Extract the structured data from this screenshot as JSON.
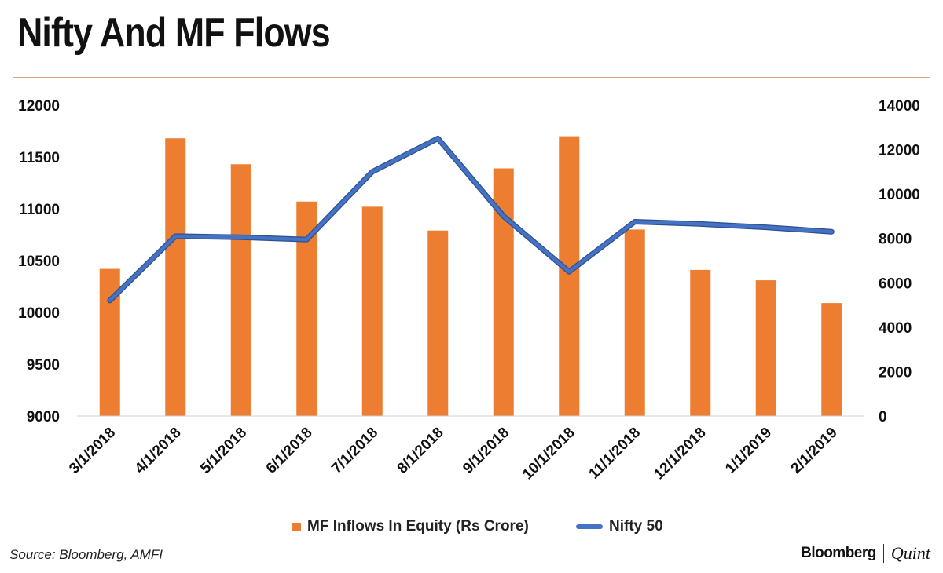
{
  "header": {
    "title": "Nifty And MF Flows"
  },
  "footer": {
    "source": "Source: Bloomberg, AMFI",
    "brand_left": "Bloomberg",
    "brand_right": "Quint"
  },
  "legend": {
    "position": "bottom",
    "bar_label": "MF Inflows In Equity (Rs Crore)",
    "line_label": "Nifty 50"
  },
  "colors": {
    "bar": "#ed7d31",
    "line": "#4472c4",
    "rule": "#e0a27a"
  },
  "chart_data": {
    "type": "bar+line",
    "categories": [
      "3/1/2018",
      "4/1/2018",
      "5/1/2018",
      "6/1/2018",
      "7/1/2018",
      "8/1/2018",
      "9/1/2018",
      "10/1/2018",
      "11/1/2018",
      "12/1/2018",
      "1/1/2019",
      "2/1/2019"
    ],
    "series": [
      {
        "name": "MF Inflows In Equity (Rs Crore)",
        "type": "bar",
        "axis": "left",
        "values": [
          10420,
          11680,
          11430,
          11070,
          11020,
          10790,
          11390,
          11700,
          10800,
          10410,
          10310,
          10090
        ]
      },
      {
        "name": "Nifty 50",
        "type": "line",
        "axis": "right",
        "values": [
          5200,
          8100,
          8050,
          7950,
          11000,
          12500,
          9000,
          6500,
          8750,
          8650,
          8500,
          8300
        ]
      }
    ],
    "y_left": {
      "min": 9000,
      "max": 12000,
      "ticks": [
        9000,
        9500,
        10000,
        10500,
        11000,
        11500,
        12000
      ]
    },
    "y_right": {
      "min": 0,
      "max": 14000,
      "ticks": [
        0,
        2000,
        4000,
        6000,
        8000,
        10000,
        12000,
        14000
      ]
    },
    "grid": false
  }
}
